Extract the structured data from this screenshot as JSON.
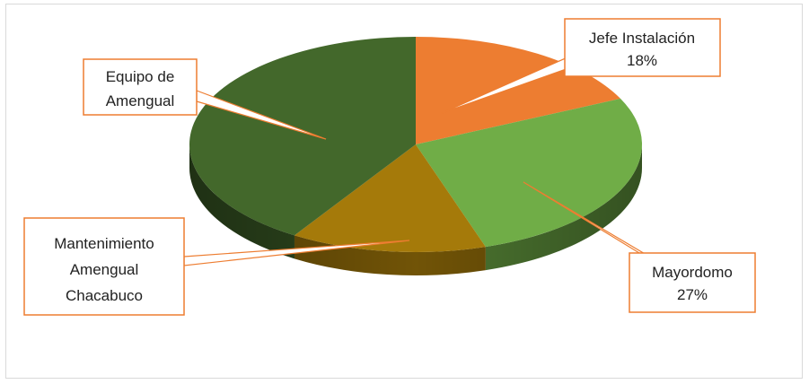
{
  "chart_data": {
    "type": "pie",
    "title": "",
    "slices": [
      {
        "label": "Jefe Instalación",
        "value": 18,
        "value_label": "18%",
        "color": "#ED7D31"
      },
      {
        "label": "Mayordomo",
        "value": 27,
        "value_label": "27%",
        "color": "#70AD47"
      },
      {
        "label": "Mantenimiento Amengual Chacabuco",
        "value": 14,
        "value_label": "",
        "color": "#A57A0A"
      },
      {
        "label": "Equipo de Amengual",
        "value": 41,
        "value_label": "",
        "color": "#43682B"
      }
    ],
    "legend": "none",
    "callout_border_color": "#ED7D31",
    "style": "3d-pie"
  },
  "callouts": {
    "jefe": {
      "line1": "Jefe Instalación",
      "line2": "18%"
    },
    "mayordomo": {
      "line1": "Mayordomo",
      "line2": "27%"
    },
    "mantenimiento": {
      "line1": "Mantenimiento",
      "line2": "Amengual",
      "line3": "Chacabuco"
    },
    "equipo": {
      "line1": "Equipo de",
      "line2": "Amengual"
    }
  }
}
